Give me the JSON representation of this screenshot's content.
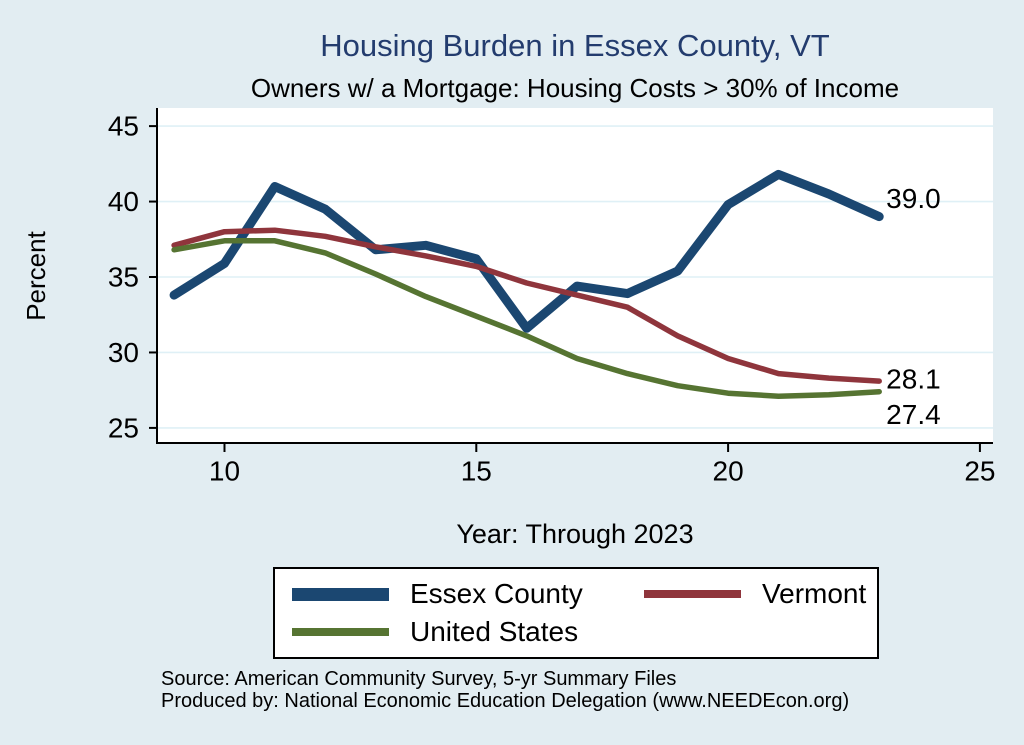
{
  "chart": {
    "title": "Housing Burden in Essex County, VT",
    "subtitle": "Owners w/ a Mortgage: Housing Costs > 30% of Income",
    "ylabel": "Percent",
    "xlabel": "Year: Through 2023"
  },
  "colors": {
    "background": "#e2edf2",
    "plot_background": "#ffffff",
    "title_navy": "#233c6e",
    "gridline": "#dff0f6",
    "axis": "#000000"
  },
  "chart_data": {
    "type": "line",
    "title": "Housing Burden in Essex County, VT",
    "subtitle": "Owners w/ a Mortgage: Housing Costs > 30% of Income",
    "xlabel": "Year: Through 2023",
    "ylabel": "Percent",
    "x": [
      9,
      10,
      11,
      12,
      13,
      14,
      15,
      16,
      17,
      18,
      19,
      20,
      21,
      22,
      23
    ],
    "x_ticks": [
      10,
      15,
      20,
      25
    ],
    "x_tick_labels": [
      "10",
      "15",
      "20",
      "25"
    ],
    "y_ticks": [
      25,
      30,
      35,
      40,
      45
    ],
    "y_tick_labels": [
      "25",
      "30",
      "35",
      "40",
      "45"
    ],
    "xlim": [
      8.66,
      25.26
    ],
    "ylim": [
      24.0,
      46.2
    ],
    "grid": "horizontal",
    "legend_position": "bottom",
    "series": [
      {
        "name": "Essex County",
        "color": "#1b4771",
        "line_width": 9,
        "values": [
          33.8,
          35.9,
          41.0,
          39.5,
          36.8,
          37.1,
          36.2,
          31.6,
          34.4,
          33.9,
          35.4,
          39.8,
          41.8,
          40.5,
          39.0
        ],
        "end_label": "39.0"
      },
      {
        "name": "Vermont",
        "color": "#8f353c",
        "line_width": 5.5,
        "values": [
          37.1,
          38.0,
          38.1,
          37.7,
          37.0,
          36.4,
          35.7,
          34.6,
          33.8,
          33.0,
          31.1,
          29.6,
          28.6,
          28.3,
          28.1
        ],
        "end_label": "28.1"
      },
      {
        "name": "United States",
        "color": "#567432",
        "line_width": 5.5,
        "values": [
          36.8,
          37.4,
          37.4,
          36.6,
          35.2,
          33.7,
          32.4,
          31.1,
          29.6,
          28.6,
          27.8,
          27.3,
          27.1,
          27.2,
          27.4
        ],
        "end_label": "27.4"
      }
    ]
  },
  "footer": {
    "source": "Source: American Community Survey, 5-yr Summary Files",
    "produced_by": "Produced by: National Economic Education Delegation (www.NEEDEcon.org)"
  }
}
